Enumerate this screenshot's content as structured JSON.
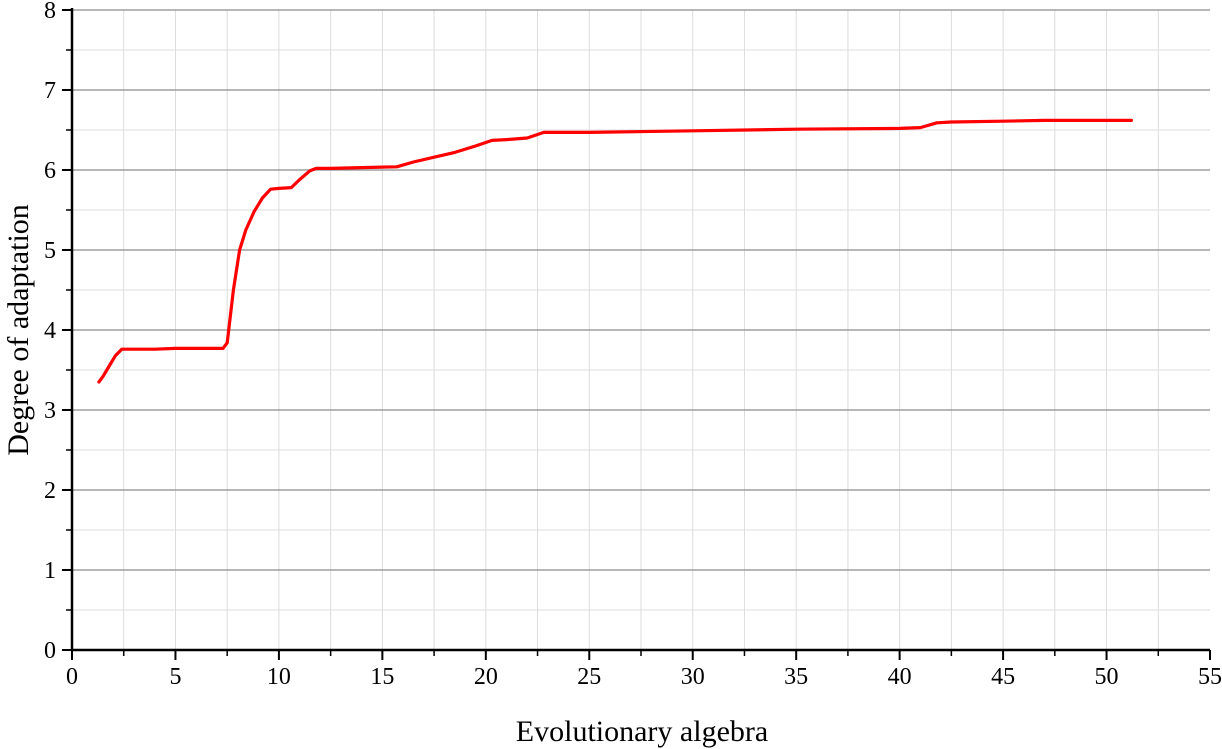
{
  "chart_data": {
    "type": "line",
    "title": "",
    "xlabel": "Evolutionary algebra",
    "ylabel": "Degree of adaptation",
    "xlim": [
      0,
      55
    ],
    "ylim": [
      0,
      8
    ],
    "xticks": [
      0,
      5,
      10,
      15,
      20,
      25,
      30,
      35,
      40,
      45,
      50,
      55
    ],
    "yticks": [
      0,
      1,
      2,
      3,
      4,
      5,
      6,
      7,
      8
    ],
    "xtick_labels": [
      "0",
      "5",
      "10",
      "15",
      "20",
      "25",
      "30",
      "35",
      "40",
      "45",
      "50",
      "55"
    ],
    "ytick_labels": [
      "0",
      "1",
      "2",
      "3",
      "4",
      "5",
      "6",
      "7",
      "8"
    ],
    "grid": true,
    "legend": "none",
    "colors": {
      "line": "#ff0000",
      "major_grid_y": "#8c8c8c",
      "minor_grid": "#dcdcdc",
      "axis": "#000000"
    },
    "series": [
      {
        "x": [
          1.3,
          1.5,
          1.8,
          2.1,
          2.4,
          3.0,
          4.0,
          5.0,
          6.0,
          7.0,
          7.3,
          7.5,
          7.8,
          8.1,
          8.4,
          8.8,
          9.2,
          9.6,
          10.0,
          10.6,
          11.0,
          11.5,
          11.8,
          12.5,
          14.0,
          15.7,
          16.5,
          17.5,
          18.5,
          19.5,
          20.3,
          21.0,
          22.0,
          22.8,
          25.0,
          30.0,
          35.0,
          40.0,
          41.0,
          41.8,
          42.5,
          45.0,
          47.0,
          50.0,
          51.2
        ],
        "values": [
          3.35,
          3.42,
          3.55,
          3.68,
          3.76,
          3.76,
          3.76,
          3.77,
          3.77,
          3.77,
          3.77,
          3.84,
          4.5,
          5.0,
          5.25,
          5.48,
          5.65,
          5.76,
          5.77,
          5.78,
          5.88,
          5.99,
          6.02,
          6.02,
          6.03,
          6.04,
          6.1,
          6.16,
          6.22,
          6.3,
          6.37,
          6.38,
          6.4,
          6.47,
          6.47,
          6.49,
          6.51,
          6.52,
          6.53,
          6.59,
          6.6,
          6.61,
          6.62,
          6.62,
          6.62
        ]
      }
    ]
  }
}
